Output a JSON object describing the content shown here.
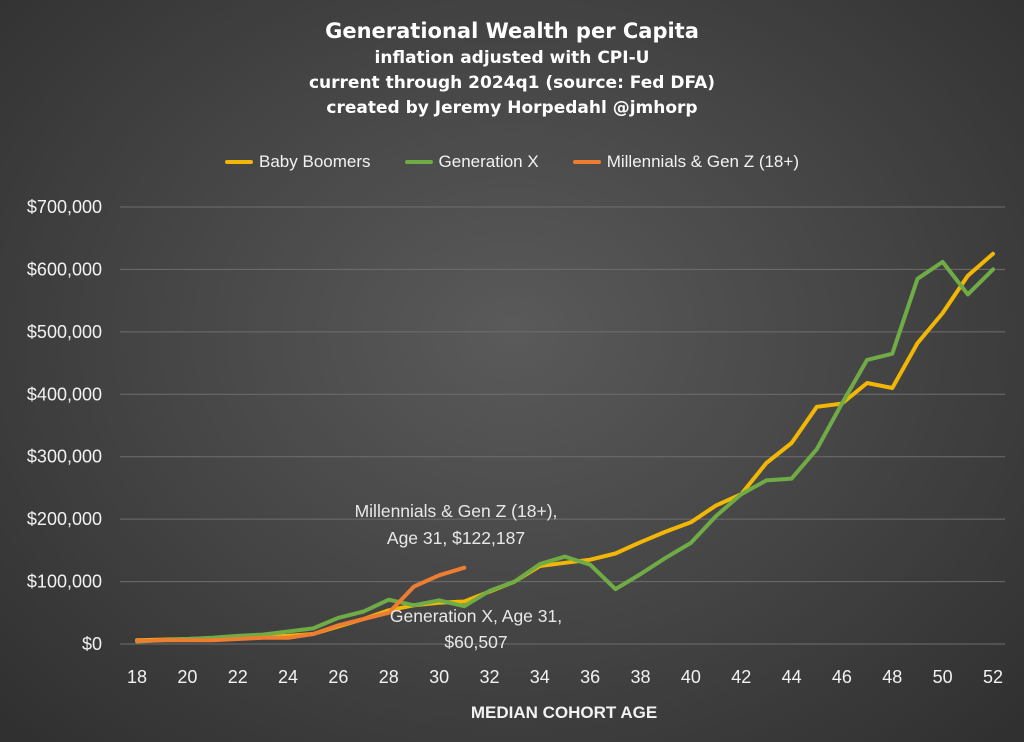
{
  "header": {
    "title": "Generational Wealth per Capita",
    "subtitle_1": "inflation adjusted with CPI-U",
    "subtitle_2": "current through 2024q1 (source: Fed DFA)",
    "subtitle_3": "created by Jeremy Horpedahl @jmhorp"
  },
  "legend": [
    {
      "label": "Baby Boomers",
      "color": "#f2b705"
    },
    {
      "label": "Generation X",
      "color": "#6fac46"
    },
    {
      "label": "Millennials & Gen Z (18+)",
      "color": "#ed7d31"
    }
  ],
  "annotations": {
    "millennials_line1": "Millennials & Gen Z (18+),",
    "millennials_line2": "Age 31, $122,187",
    "genx_line1": "Generation X, Age 31,",
    "genx_line2": "$60,507"
  },
  "chart_data": {
    "type": "line",
    "title": "Generational Wealth per Capita",
    "xlabel": "MEDIAN COHORT AGE",
    "ylabel": "",
    "xlim": [
      18,
      52
    ],
    "ylim": [
      0,
      700000
    ],
    "x_ticks": [
      18,
      20,
      22,
      24,
      26,
      28,
      30,
      32,
      34,
      36,
      38,
      40,
      42,
      44,
      46,
      48,
      50,
      52
    ],
    "y_ticks": [
      {
        "value": 0,
        "label": "$0"
      },
      {
        "value": 100000,
        "label": "$100,000"
      },
      {
        "value": 200000,
        "label": "$200,000"
      },
      {
        "value": 300000,
        "label": "$300,000"
      },
      {
        "value": 400000,
        "label": "$400,000"
      },
      {
        "value": 500000,
        "label": "$500,000"
      },
      {
        "value": 600000,
        "label": "$600,000"
      },
      {
        "value": 700000,
        "label": "$700,000"
      }
    ],
    "grid": true,
    "legend_position": "top",
    "series": [
      {
        "name": "Baby Boomers",
        "color": "#f2b705",
        "x": [
          18,
          19,
          20,
          21,
          22,
          23,
          24,
          25,
          26,
          27,
          28,
          29,
          30,
          31,
          32,
          33,
          34,
          35,
          36,
          37,
          38,
          39,
          40,
          41,
          42,
          43,
          44,
          45,
          46,
          47,
          48,
          49,
          50,
          51,
          52
        ],
        "values": [
          6000,
          7000,
          8000,
          9000,
          10000,
          12000,
          13000,
          16000,
          28000,
          40000,
          54000,
          62000,
          66000,
          68000,
          84000,
          100000,
          125000,
          130000,
          135000,
          145000,
          163000,
          180000,
          195000,
          222000,
          240000,
          290000,
          322000,
          380000,
          385000,
          418000,
          410000,
          482000,
          530000,
          590000,
          625000
        ]
      },
      {
        "name": "Generation X",
        "color": "#6fac46",
        "x": [
          18,
          19,
          20,
          21,
          22,
          23,
          24,
          25,
          26,
          27,
          28,
          29,
          30,
          31,
          32,
          33,
          34,
          35,
          36,
          37,
          38,
          39,
          40,
          41,
          42,
          43,
          44,
          45,
          46,
          47,
          48,
          49,
          50,
          51,
          52
        ],
        "values": [
          4000,
          6000,
          8000,
          10000,
          13000,
          15000,
          20000,
          25000,
          42000,
          52000,
          71000,
          62000,
          70000,
          60507,
          85000,
          100000,
          128000,
          140000,
          127000,
          88000,
          112000,
          138000,
          162000,
          205000,
          240000,
          262000,
          265000,
          312000,
          385000,
          455000,
          465000,
          585000,
          612000,
          560000,
          600000
        ]
      },
      {
        "name": "Millennials & Gen Z (18+)",
        "color": "#ed7d31",
        "x": [
          18,
          19,
          20,
          21,
          22,
          23,
          24,
          25,
          26,
          27,
          28,
          29,
          30,
          31
        ],
        "values": [
          5000,
          6000,
          6000,
          6000,
          8000,
          10000,
          10000,
          16000,
          30000,
          40000,
          50000,
          92000,
          110000,
          122187
        ]
      }
    ]
  }
}
